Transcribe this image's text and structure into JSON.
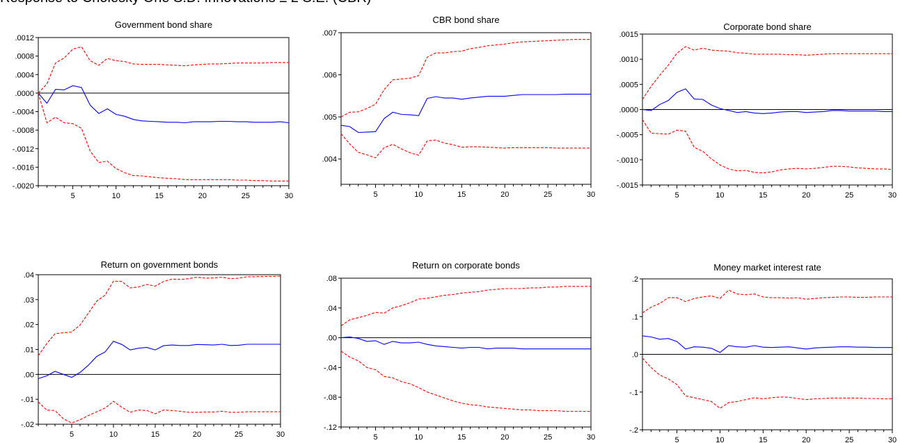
{
  "header": {
    "partial_title": "Response to Cholesky One S.D. Innovations ± 2 S.E. (CBR)"
  },
  "chart_data": [
    {
      "type": "line",
      "title": "Government bond share",
      "xlim": [
        1,
        30
      ],
      "ylim": [
        -0.002,
        0.0012
      ],
      "x_ticks": [
        5,
        10,
        15,
        20,
        25,
        30
      ],
      "y_ticks": [
        -0.002,
        -0.0016,
        -0.0012,
        -0.0008,
        -0.0004,
        0.0,
        0.0004,
        0.0008,
        0.0012
      ],
      "y_tick_labels": [
        "-.0020",
        "-.0016",
        "-.0012",
        "-.0008",
        "-.0004",
        ".0000",
        ".0004",
        ".0008",
        ".0012"
      ],
      "zero_line": true,
      "series": [
        {
          "role": "response",
          "color": "#0000ff",
          "dashed": false,
          "values": [
            0.0,
            -0.00022,
            8e-05,
            7e-05,
            0.00016,
            0.00012,
            -0.00026,
            -0.00044,
            -0.00034,
            -0.00046,
            -0.0005,
            -0.00057,
            -0.0006,
            -0.00061,
            -0.00062,
            -0.00063,
            -0.00063,
            -0.00064,
            -0.00062,
            -0.00062,
            -0.00062,
            -0.00061,
            -0.00061,
            -0.00062,
            -0.00062,
            -0.00063,
            -0.00063,
            -0.00063,
            -0.00062,
            -0.00064
          ]
        },
        {
          "role": "upper",
          "color": "#ff0000",
          "dashed": true,
          "values": [
            0.0,
            0.0002,
            0.00065,
            0.00076,
            0.00095,
            0.001,
            0.0007,
            0.0006,
            0.00075,
            0.0007,
            0.00068,
            0.00063,
            0.00062,
            0.00062,
            0.00062,
            0.00061,
            0.0006,
            0.00059,
            0.00061,
            0.00062,
            0.00063,
            0.00063,
            0.00064,
            0.00065,
            0.00065,
            0.00065,
            0.00065,
            0.00066,
            0.00066,
            0.00066
          ]
        },
        {
          "role": "lower",
          "color": "#ff0000",
          "dashed": true,
          "values": [
            0.0,
            -0.00064,
            -0.00052,
            -0.00064,
            -0.00066,
            -0.00076,
            -0.00125,
            -0.0015,
            -0.00147,
            -0.00163,
            -0.00172,
            -0.00178,
            -0.00179,
            -0.00181,
            -0.00183,
            -0.00184,
            -0.00185,
            -0.00187,
            -0.00187,
            -0.00187,
            -0.00187,
            -0.00187,
            -0.00187,
            -0.00188,
            -0.00188,
            -0.00189,
            -0.00189,
            -0.0019,
            -0.0019,
            -0.0019
          ]
        }
      ]
    },
    {
      "type": "line",
      "title": "CBR bond share",
      "xlim": [
        1,
        30
      ],
      "ylim": [
        0.0034,
        0.007
      ],
      "x_ticks": [
        5,
        10,
        15,
        20,
        25,
        30
      ],
      "y_ticks": [
        0.004,
        0.005,
        0.006,
        0.007
      ],
      "y_tick_labels": [
        ".004",
        ".005",
        ".006",
        ".007"
      ],
      "zero_line": false,
      "series": [
        {
          "role": "response",
          "color": "#0000ff",
          "dashed": false,
          "values": [
            0.0048,
            0.00477,
            0.00463,
            0.00464,
            0.00465,
            0.00496,
            0.00511,
            0.00506,
            0.00505,
            0.00503,
            0.00544,
            0.00548,
            0.00545,
            0.00545,
            0.00542,
            0.00545,
            0.00547,
            0.00549,
            0.00549,
            0.00549,
            0.00551,
            0.00553,
            0.00553,
            0.00553,
            0.00553,
            0.00553,
            0.00554,
            0.00554,
            0.00554,
            0.00554
          ]
        },
        {
          "role": "upper",
          "color": "#ff0000",
          "dashed": true,
          "values": [
            0.005,
            0.00511,
            0.00512,
            0.0052,
            0.0053,
            0.00565,
            0.00588,
            0.0059,
            0.00592,
            0.00598,
            0.00642,
            0.00652,
            0.00652,
            0.00655,
            0.00656,
            0.00662,
            0.00665,
            0.00669,
            0.00671,
            0.00673,
            0.00676,
            0.00678,
            0.00679,
            0.0068,
            0.00681,
            0.00682,
            0.00683,
            0.00684,
            0.00684,
            0.00684
          ]
        },
        {
          "role": "lower",
          "color": "#ff0000",
          "dashed": true,
          "values": [
            0.0046,
            0.00436,
            0.00416,
            0.0041,
            0.00403,
            0.00427,
            0.00435,
            0.00424,
            0.00415,
            0.00409,
            0.00443,
            0.00445,
            0.00438,
            0.00434,
            0.00428,
            0.00429,
            0.00429,
            0.00428,
            0.00427,
            0.00426,
            0.00427,
            0.00427,
            0.00427,
            0.00427,
            0.00427,
            0.00426,
            0.00426,
            0.00426,
            0.00426,
            0.00426
          ]
        }
      ]
    },
    {
      "type": "line",
      "title": "Corporate bond share",
      "xlim": [
        1,
        30
      ],
      "ylim": [
        -0.0015,
        0.0015
      ],
      "x_ticks": [
        5,
        10,
        15,
        20,
        25,
        30
      ],
      "y_ticks": [
        -0.0015,
        -0.001,
        -0.0005,
        0.0,
        0.0005,
        0.001,
        0.0015
      ],
      "y_tick_labels": [
        "-.0015",
        "-.0010",
        "-.0005",
        ".0000",
        ".0005",
        ".0010",
        ".0015"
      ],
      "zero_line": true,
      "series": [
        {
          "role": "response",
          "color": "#0000ff",
          "dashed": false,
          "values": [
            0.0,
            -2e-05,
            0.0001,
            0.00018,
            0.00034,
            0.00041,
            0.00021,
            0.0002,
            9e-05,
            2e-05,
            -2e-05,
            -6e-05,
            -4e-05,
            -7e-05,
            -8e-05,
            -7e-05,
            -5e-05,
            -4e-05,
            -4e-05,
            -6e-05,
            -5e-05,
            -4e-05,
            -2e-05,
            -2e-05,
            -3e-05,
            -3e-05,
            -3e-05,
            -3e-05,
            -4e-05,
            -4e-05
          ]
        },
        {
          "role": "upper",
          "color": "#ff0000",
          "dashed": true,
          "values": [
            0.0002,
            0.00046,
            0.00068,
            0.00088,
            0.00112,
            0.00125,
            0.00118,
            0.00122,
            0.00118,
            0.00117,
            0.00116,
            0.00113,
            0.00112,
            0.0011,
            0.0011,
            0.0011,
            0.0011,
            0.00109,
            0.00109,
            0.00108,
            0.00109,
            0.0011,
            0.00111,
            0.00111,
            0.00111,
            0.00111,
            0.00111,
            0.00111,
            0.00111,
            0.00111
          ]
        },
        {
          "role": "lower",
          "color": "#ff0000",
          "dashed": true,
          "values": [
            -0.0002,
            -0.00047,
            -0.00048,
            -0.00049,
            -0.00041,
            -0.00043,
            -0.00075,
            -0.00083,
            -0.00098,
            -0.0011,
            -0.00118,
            -0.00122,
            -0.00121,
            -0.00125,
            -0.00126,
            -0.00124,
            -0.0012,
            -0.00118,
            -0.00117,
            -0.00118,
            -0.00117,
            -0.00115,
            -0.00113,
            -0.00113,
            -0.00114,
            -0.00116,
            -0.00117,
            -0.00118,
            -0.00118,
            -0.00119
          ]
        }
      ]
    },
    {
      "type": "line",
      "title": "Return on government bonds",
      "xlim": [
        1,
        30
      ],
      "ylim": [
        -0.02,
        0.04
      ],
      "x_ticks": [
        5,
        10,
        15,
        20,
        25,
        30
      ],
      "y_ticks": [
        -0.02,
        -0.01,
        0.0,
        0.01,
        0.02,
        0.03,
        0.04
      ],
      "y_tick_labels": [
        "-.02",
        "-.01",
        ".00",
        ".01",
        ".02",
        ".03",
        ".04"
      ],
      "zero_line": true,
      "series": [
        {
          "role": "response",
          "color": "#0000ff",
          "dashed": false,
          "values": [
            -0.0017,
            -0.0006,
            0.0012,
            0.0,
            -0.0012,
            0.0008,
            0.0037,
            0.0072,
            0.009,
            0.0133,
            0.012,
            0.0098,
            0.0105,
            0.0108,
            0.0098,
            0.0115,
            0.0118,
            0.0116,
            0.0116,
            0.012,
            0.0119,
            0.0118,
            0.0121,
            0.0116,
            0.0117,
            0.0121,
            0.0121,
            0.0121,
            0.0121,
            0.0121
          ]
        },
        {
          "role": "upper",
          "color": "#ff0000",
          "dashed": true,
          "values": [
            0.0075,
            0.0123,
            0.0163,
            0.0167,
            0.017,
            0.0198,
            0.0246,
            0.0294,
            0.0318,
            0.0374,
            0.0373,
            0.0347,
            0.0351,
            0.0361,
            0.0354,
            0.0373,
            0.0382,
            0.0381,
            0.0384,
            0.039,
            0.0386,
            0.0387,
            0.039,
            0.0384,
            0.0386,
            0.0392,
            0.0392,
            0.0393,
            0.0393,
            0.0394
          ]
        },
        {
          "role": "lower",
          "color": "#ff0000",
          "dashed": true,
          "values": [
            -0.011,
            -0.0143,
            -0.0145,
            -0.0178,
            -0.0195,
            -0.0182,
            -0.0165,
            -0.015,
            -0.0135,
            -0.0108,
            -0.0132,
            -0.0152,
            -0.0143,
            -0.0145,
            -0.0158,
            -0.0143,
            -0.0145,
            -0.0148,
            -0.0152,
            -0.0152,
            -0.0151,
            -0.0151,
            -0.0148,
            -0.0152,
            -0.0152,
            -0.015,
            -0.015,
            -0.015,
            -0.015,
            -0.015
          ]
        }
      ]
    },
    {
      "type": "line",
      "title": "Return on corporate bonds",
      "xlim": [
        1,
        30
      ],
      "ylim": [
        -0.12,
        0.08
      ],
      "x_ticks": [
        5,
        10,
        15,
        20,
        25,
        30
      ],
      "y_ticks": [
        -0.12,
        -0.08,
        -0.04,
        0.0,
        0.04,
        0.08
      ],
      "y_tick_labels": [
        "-.12",
        "-.08",
        "-.04",
        ".00",
        ".04",
        ".08"
      ],
      "zero_line": true,
      "series": [
        {
          "role": "response",
          "color": "#0000ff",
          "dashed": false,
          "values": [
            0.0,
            0.001,
            -0.001,
            -0.005,
            -0.004,
            -0.009,
            -0.005,
            -0.007,
            -0.007,
            -0.006,
            -0.009,
            -0.011,
            -0.012,
            -0.013,
            -0.014,
            -0.013,
            -0.013,
            -0.015,
            -0.014,
            -0.014,
            -0.014,
            -0.015,
            -0.015,
            -0.015,
            -0.015,
            -0.015,
            -0.015,
            -0.015,
            -0.015,
            -0.015
          ]
        },
        {
          "role": "upper",
          "color": "#ff0000",
          "dashed": true,
          "values": [
            0.016,
            0.024,
            0.027,
            0.03,
            0.034,
            0.033,
            0.04,
            0.043,
            0.047,
            0.052,
            0.053,
            0.055,
            0.057,
            0.058,
            0.06,
            0.061,
            0.062,
            0.064,
            0.065,
            0.066,
            0.066,
            0.066,
            0.067,
            0.067,
            0.068,
            0.068,
            0.069,
            0.069,
            0.069,
            0.069
          ]
        },
        {
          "role": "lower",
          "color": "#ff0000",
          "dashed": true,
          "values": [
            -0.018,
            -0.026,
            -0.031,
            -0.04,
            -0.043,
            -0.052,
            -0.054,
            -0.059,
            -0.062,
            -0.067,
            -0.073,
            -0.077,
            -0.081,
            -0.085,
            -0.088,
            -0.09,
            -0.091,
            -0.093,
            -0.094,
            -0.095,
            -0.096,
            -0.097,
            -0.097,
            -0.098,
            -0.098,
            -0.098,
            -0.099,
            -0.099,
            -0.099,
            -0.099
          ]
        }
      ]
    },
    {
      "type": "line",
      "title": "Money market interest rate",
      "xlim": [
        1,
        30
      ],
      "ylim": [
        -0.2,
        0.2
      ],
      "x_ticks": [
        5,
        10,
        15,
        20,
        25,
        30
      ],
      "y_ticks": [
        -0.2,
        -0.1,
        0.0,
        0.1,
        0.2
      ],
      "y_tick_labels": [
        "-.2",
        "-.1",
        ".0",
        ".1",
        ".2"
      ],
      "zero_line": true,
      "series": [
        {
          "role": "response",
          "color": "#0000ff",
          "dashed": false,
          "values": [
            0.049,
            0.046,
            0.04,
            0.042,
            0.034,
            0.014,
            0.02,
            0.019,
            0.016,
            0.005,
            0.023,
            0.02,
            0.019,
            0.023,
            0.019,
            0.018,
            0.019,
            0.02,
            0.017,
            0.014,
            0.017,
            0.018,
            0.019,
            0.02,
            0.02,
            0.019,
            0.019,
            0.018,
            0.018,
            0.018
          ]
        },
        {
          "role": "upper",
          "color": "#ff0000",
          "dashed": true,
          "values": [
            0.11,
            0.125,
            0.135,
            0.15,
            0.15,
            0.14,
            0.148,
            0.152,
            0.155,
            0.148,
            0.17,
            0.16,
            0.158,
            0.16,
            0.152,
            0.15,
            0.15,
            0.149,
            0.15,
            0.146,
            0.148,
            0.15,
            0.151,
            0.152,
            0.152,
            0.151,
            0.151,
            0.152,
            0.152,
            0.152
          ]
        },
        {
          "role": "lower",
          "color": "#ff0000",
          "dashed": true,
          "values": [
            -0.01,
            -0.035,
            -0.055,
            -0.065,
            -0.08,
            -0.11,
            -0.115,
            -0.12,
            -0.125,
            -0.143,
            -0.128,
            -0.125,
            -0.12,
            -0.115,
            -0.118,
            -0.115,
            -0.113,
            -0.114,
            -0.117,
            -0.12,
            -0.118,
            -0.117,
            -0.116,
            -0.116,
            -0.116,
            -0.116,
            -0.117,
            -0.117,
            -0.118,
            -0.118
          ]
        }
      ]
    }
  ]
}
